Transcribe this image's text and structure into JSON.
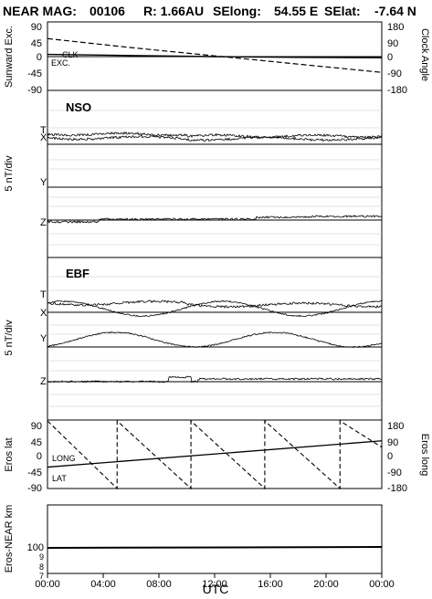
{
  "title": {
    "mission": "NEAR MAG:",
    "doy": "00106",
    "range": "R: 1.66AU",
    "selong_label": "SElong:",
    "selong_value": "54.55 E",
    "selat_label": "SElat:",
    "selat_value": "-7.64 N"
  },
  "chart_data": [
    {
      "type": "line",
      "panel": "angles",
      "ylabel": "Sunward Exc.",
      "y2label": "Clock Angle",
      "ylim": [
        -90,
        90
      ],
      "y2lim": [
        -180,
        180
      ],
      "yticks": [
        "90",
        "45",
        "0",
        "-45",
        "-90"
      ],
      "y2ticks": [
        "180",
        "90",
        "0",
        "-90",
        "-180"
      ],
      "series_labels": [
        "CLK",
        "EXC."
      ],
      "series": [
        {
          "label": "EXC.",
          "style": "solid",
          "x": [
            0,
            6,
            12,
            18,
            24
          ],
          "y": [
            6,
            3,
            0,
            -2,
            -3
          ]
        },
        {
          "label": "CLK",
          "style": "dashed",
          "x": [
            0,
            6,
            12,
            18,
            24
          ],
          "y": [
            48,
            24,
            2,
            -20,
            -42
          ]
        }
      ]
    },
    {
      "type": "line",
      "panel": "NSO",
      "panel_label": "NSO",
      "ylabel": "5 nT/div",
      "components": [
        "T",
        "X",
        "Y",
        "Z"
      ],
      "grid": true
    },
    {
      "type": "line",
      "panel": "EBF",
      "panel_label": "EBF",
      "ylabel": "5 nT/div",
      "components": [
        "T",
        "X",
        "Y",
        "Z"
      ],
      "grid": true
    },
    {
      "type": "line",
      "panel": "eros",
      "ylabel": "Eros lat",
      "y2label": "Eros long",
      "ylim": [
        -90,
        90
      ],
      "y2lim": [
        -180,
        180
      ],
      "yticks": [
        "90",
        "45",
        "0",
        "-45",
        "-90"
      ],
      "y2ticks": [
        "180",
        "90",
        "0",
        "-90",
        "-180"
      ],
      "series_labels": [
        "LONG",
        "LAT"
      ],
      "series": [
        {
          "label": "LAT",
          "style": "solid",
          "x": [
            0,
            24
          ],
          "y": [
            -33,
            37
          ]
        },
        {
          "label": "LONG",
          "style": "dashed",
          "x": [
            0,
            5,
            5,
            10.3,
            10.3,
            15.6,
            15.6,
            21,
            21,
            24
          ],
          "y2": [
            180,
            -180,
            180,
            -180,
            180,
            -180,
            180,
            -180,
            180,
            40
          ]
        }
      ]
    },
    {
      "type": "line",
      "panel": "distance",
      "ylabel": "Eros-NEAR km",
      "yticks": [
        "100",
        "9",
        "8",
        "7"
      ],
      "series": [
        {
          "label": "range",
          "style": "solid",
          "x": [
            0,
            24
          ],
          "y": [
            100,
            100
          ]
        }
      ]
    }
  ],
  "xaxis": {
    "label": "UTC",
    "ticks": [
      "00:00",
      "04:00",
      "08:00",
      "12:00",
      "16:00",
      "20:00",
      "00:00"
    ]
  }
}
